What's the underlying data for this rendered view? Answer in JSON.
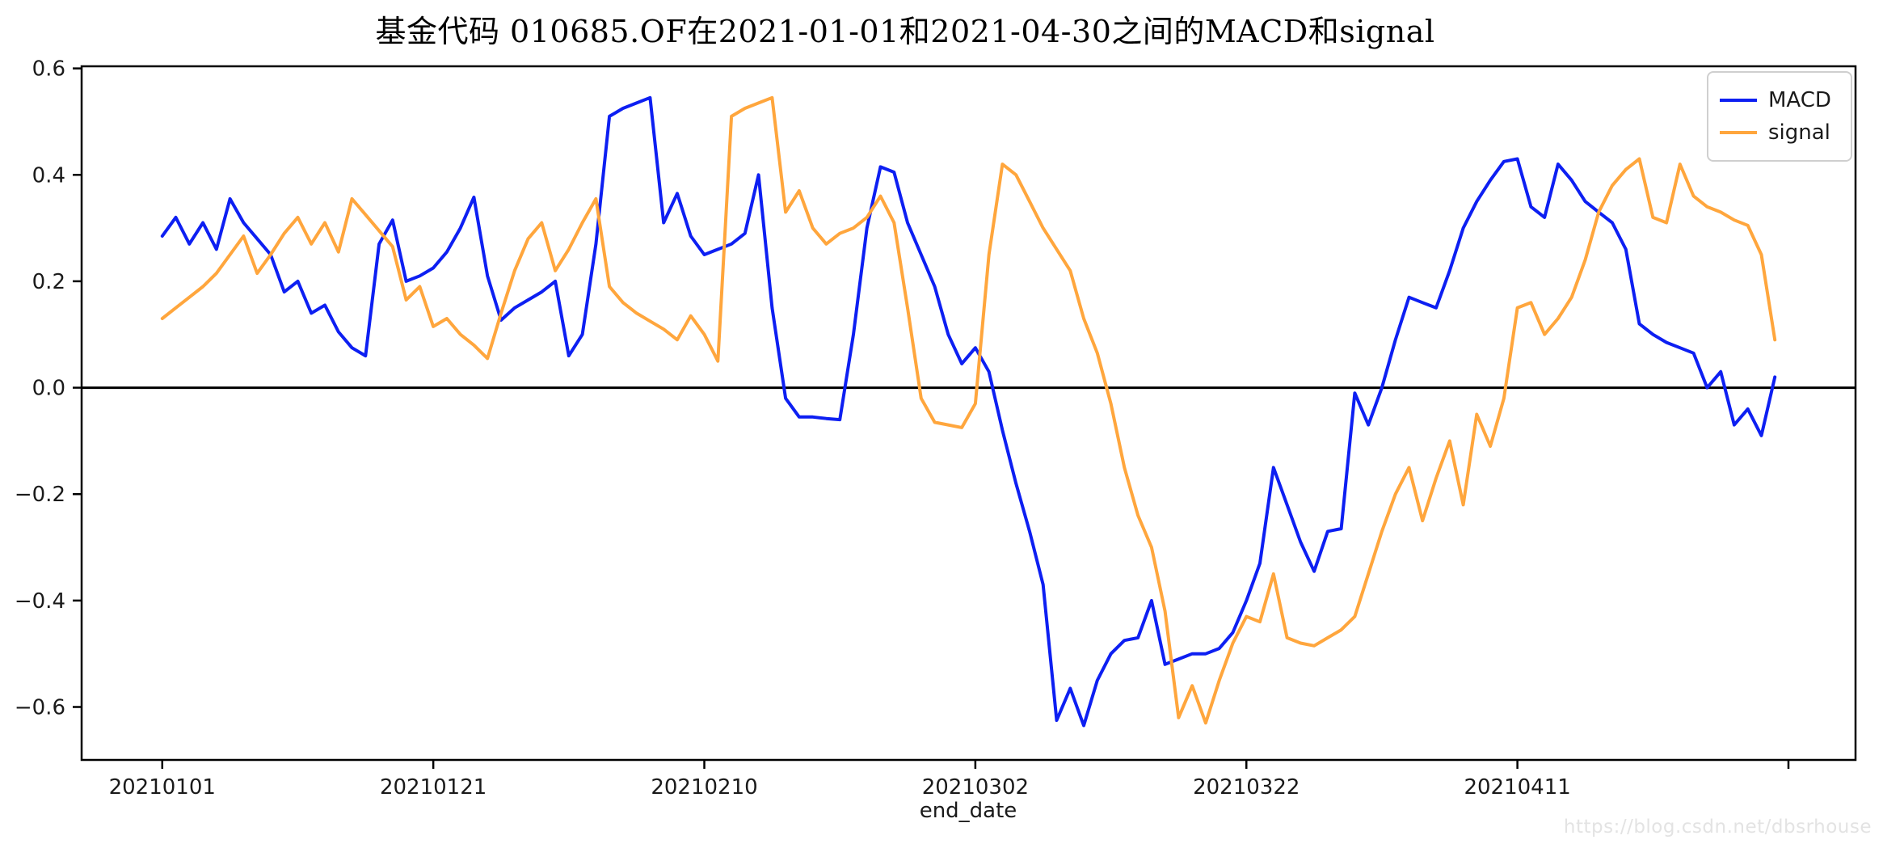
{
  "title": "基金代码 010685.OF在2021-01-01和2021-04-30之间的MACD和signal",
  "axes": {
    "xlabel": "end_date",
    "x_tick_labels": [
      "20210101",
      "20210121",
      "20210210",
      "20210302",
      "20210322",
      "20210411",
      ""
    ],
    "y_tick_labels": [
      "0.6",
      "0.4",
      "0.2",
      "0.0",
      "−0.2",
      "−0.4",
      "−0.6"
    ]
  },
  "legend": {
    "items": [
      {
        "label": "MACD",
        "color": "#0d1ff2"
      },
      {
        "label": "signal",
        "color": "#ffa63d"
      }
    ]
  },
  "watermark": "https://blog.csdn.net/dbsrhouse",
  "chart_data": {
    "type": "line",
    "title": "基金代码 010685.OF在2021-01-01和2021-04-30之间的MACD和signal",
    "xlabel": "end_date",
    "ylabel": "",
    "x_axis": {
      "kind": "daily-dates",
      "start": "2021-01-01",
      "end": "2021-04-30",
      "n_points": 120,
      "tick_indices": [
        0,
        20,
        40,
        60,
        80,
        100,
        120
      ],
      "tick_labels": [
        "20210101",
        "20210121",
        "20210210",
        "20210302",
        "20210322",
        "20210411",
        ""
      ]
    },
    "ylim": [
      -0.6995,
      0.604
    ],
    "y_ticks": [
      0.6,
      0.4,
      0.2,
      0.0,
      -0.2,
      -0.4,
      -0.6
    ],
    "zero_line": true,
    "grid": false,
    "legend_position": "upper right",
    "series": [
      {
        "name": "MACD",
        "color": "#0d1ff2",
        "values": [
          0.285,
          0.32,
          0.27,
          0.31,
          0.26,
          0.355,
          0.31,
          0.28,
          0.25,
          0.18,
          0.2,
          0.14,
          0.155,
          0.105,
          0.075,
          0.06,
          0.27,
          0.315,
          0.2,
          0.21,
          0.225,
          0.255,
          0.3,
          0.358,
          0.21,
          0.127,
          0.15,
          0.165,
          0.18,
          0.2,
          0.06,
          0.1,
          0.27,
          0.51,
          0.525,
          0.535,
          0.545,
          0.31,
          0.365,
          0.285,
          0.25,
          0.26,
          0.27,
          0.29,
          0.4,
          0.15,
          -0.02,
          -0.055,
          -0.055,
          -0.058,
          -0.06,
          0.1,
          0.3,
          0.415,
          0.405,
          0.31,
          0.25,
          0.19,
          0.1,
          0.045,
          0.075,
          0.03,
          -0.08,
          -0.18,
          -0.27,
          -0.37,
          -0.625,
          -0.565,
          -0.635,
          -0.55,
          -0.5,
          -0.475,
          -0.47,
          -0.4,
          -0.52,
          -0.51,
          -0.5,
          -0.5,
          -0.49,
          -0.46,
          -0.4,
          -0.33,
          -0.15,
          -0.22,
          -0.29,
          -0.345,
          -0.27,
          -0.265,
          -0.01,
          -0.07,
          0.0,
          0.09,
          0.17,
          0.16,
          0.15,
          0.22,
          0.3,
          0.35,
          0.39,
          0.425,
          0.43,
          0.34,
          0.32,
          0.42,
          0.39,
          0.35,
          0.33,
          0.31,
          0.26,
          0.12,
          0.1,
          0.085,
          0.075,
          0.065,
          0.0,
          0.03,
          -0.07,
          -0.04,
          -0.09,
          0.02
        ]
      },
      {
        "name": "signal",
        "color": "#ffa63d",
        "values": [
          0.13,
          0.15,
          0.17,
          0.19,
          0.215,
          0.25,
          0.285,
          0.215,
          0.25,
          0.29,
          0.32,
          0.27,
          0.31,
          0.255,
          0.355,
          0.325,
          0.295,
          0.265,
          0.165,
          0.19,
          0.115,
          0.13,
          0.1,
          0.08,
          0.055,
          0.14,
          0.22,
          0.28,
          0.31,
          0.22,
          0.26,
          0.31,
          0.355,
          0.19,
          0.16,
          0.14,
          0.125,
          0.11,
          0.09,
          0.135,
          0.1,
          0.05,
          0.51,
          0.525,
          0.535,
          0.545,
          0.33,
          0.37,
          0.3,
          0.27,
          0.29,
          0.3,
          0.32,
          0.36,
          0.31,
          0.15,
          -0.02,
          -0.065,
          -0.07,
          -0.075,
          -0.03,
          0.25,
          0.42,
          0.4,
          0.35,
          0.3,
          0.26,
          0.22,
          0.13,
          0.065,
          -0.03,
          -0.15,
          -0.24,
          -0.3,
          -0.42,
          -0.62,
          -0.56,
          -0.63,
          -0.55,
          -0.48,
          -0.43,
          -0.44,
          -0.35,
          -0.47,
          -0.48,
          -0.485,
          -0.47,
          -0.455,
          -0.43,
          -0.35,
          -0.27,
          -0.2,
          -0.15,
          -0.25,
          -0.17,
          -0.1,
          -0.22,
          -0.05,
          -0.11,
          -0.02,
          0.15,
          0.16,
          0.1,
          0.13,
          0.17,
          0.24,
          0.33,
          0.38,
          0.41,
          0.43,
          0.32,
          0.31,
          0.42,
          0.36,
          0.34,
          0.33,
          0.315,
          0.305,
          0.25,
          0.09
        ]
      }
    ]
  }
}
